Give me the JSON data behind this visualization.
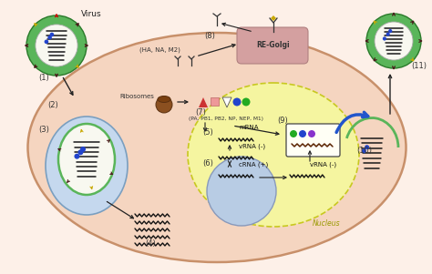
{
  "bg_color": "#fdf0e8",
  "cell_fill": "#f5d5c0",
  "cell_edge": "#c8906a",
  "nucleus_fill": "#f5f5a0",
  "nucleus_edge": "#c8c820",
  "endosome_fill": "#c5d8ee",
  "endosome_edge": "#7a9fc0",
  "virus_green": "#5ab55a",
  "virus_dark_green": "#2a7a2a",
  "virus_white": "#f8f8f0",
  "spike_dark": "#4a1a1a",
  "spike_yellow": "#c8a800",
  "spike_red": "#cc0000",
  "rna_color": "#1a1a1a",
  "dot_blue": "#2244cc",
  "dot_purple": "#8833cc",
  "dot_pink": "#dd44aa",
  "dot_green": "#22aa22",
  "golgi_fill": "#d4a0a0",
  "ribosome_fill": "#7a4010",
  "arrow_dark": "#222222",
  "blue_arrow": "#2255cc",
  "text_dark": "#222222",
  "text_step": "#333333",
  "labels": {
    "virus": "Virus",
    "re_golgi": "RE-Golgi",
    "ribosomes": "Ribosomes",
    "nucleus": "Nucleus",
    "mrna": "mRNA",
    "vrna1": "vRNA (-)",
    "crna": "cRNA (+)",
    "vrna2": "vRNA (-)",
    "ha_na_m2": "(HA, NA, M2)",
    "pa_list": "(PA, PB1, PB2, NP, NEP, M1)"
  }
}
